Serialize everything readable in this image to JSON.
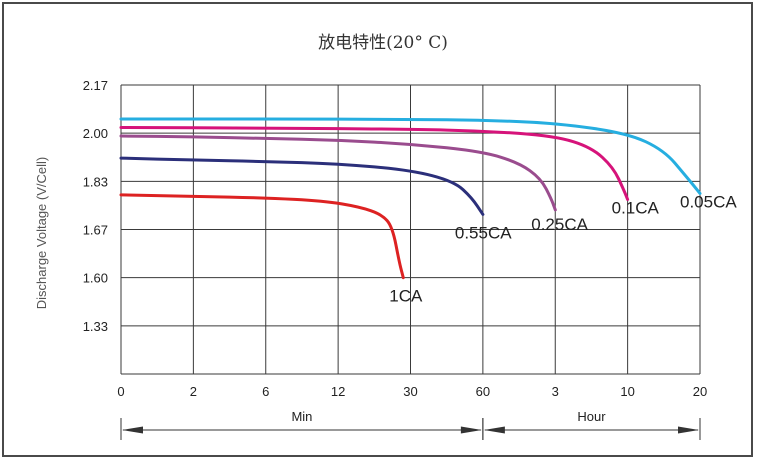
{
  "chart_data": {
    "type": "line",
    "title": "放电特性(20° C)",
    "ylabel": "Discharge Voltage (V/Cell)",
    "xlabel": "",
    "x_ticks": [
      "0",
      "2",
      "6",
      "12",
      "30",
      "60",
      "3",
      "10",
      "20"
    ],
    "y_ticks": [
      "2.17",
      "2.00",
      "1.83",
      "1.67",
      "1.60",
      "1.33"
    ],
    "x_groups": [
      {
        "label": "Min",
        "from": "0",
        "to": "60"
      },
      {
        "label": "Hour",
        "from": "60",
        "to": "20"
      }
    ],
    "grid": true,
    "series": [
      {
        "name": "1CA",
        "color": "#dd2222",
        "points": [
          [
            0,
            1.785
          ],
          [
            1,
            1.78
          ],
          [
            2,
            1.775
          ],
          [
            2.8,
            1.765
          ],
          [
            3.3,
            1.745
          ],
          [
            3.6,
            1.72
          ],
          [
            3.75,
            1.68
          ],
          [
            3.85,
            1.62
          ],
          [
            3.9,
            1.6
          ]
        ]
      },
      {
        "name": "0.55CA",
        "color": "#2b2f7a",
        "points": [
          [
            0,
            1.912
          ],
          [
            1,
            1.905
          ],
          [
            2,
            1.9
          ],
          [
            3,
            1.892
          ],
          [
            4,
            1.87
          ],
          [
            4.6,
            1.83
          ],
          [
            4.85,
            1.775
          ],
          [
            5,
            1.72
          ]
        ]
      },
      {
        "name": "0.25CA",
        "color": "#9a4c8e",
        "points": [
          [
            0,
            1.99
          ],
          [
            1,
            1.987
          ],
          [
            2,
            1.982
          ],
          [
            3,
            1.975
          ],
          [
            4,
            1.962
          ],
          [
            5,
            1.935
          ],
          [
            5.5,
            1.895
          ],
          [
            5.8,
            1.84
          ],
          [
            5.95,
            1.77
          ],
          [
            6,
            1.735
          ]
        ]
      },
      {
        "name": "0.1CA",
        "color": "#d6137a",
        "points": [
          [
            0,
            2.02
          ],
          [
            2,
            2.018
          ],
          [
            4,
            2.014
          ],
          [
            5,
            2.008
          ],
          [
            6,
            1.99
          ],
          [
            6.5,
            1.95
          ],
          [
            6.8,
            1.88
          ],
          [
            6.95,
            1.8
          ],
          [
            7,
            1.77
          ]
        ]
      },
      {
        "name": "0.05CA",
        "color": "#26aee0",
        "points": [
          [
            0,
            2.05
          ],
          [
            2,
            2.05
          ],
          [
            4,
            2.049
          ],
          [
            5,
            2.046
          ],
          [
            6,
            2.036
          ],
          [
            7,
            2.0
          ],
          [
            7.5,
            1.94
          ],
          [
            7.8,
            1.85
          ],
          [
            8,
            1.79
          ]
        ]
      }
    ]
  }
}
